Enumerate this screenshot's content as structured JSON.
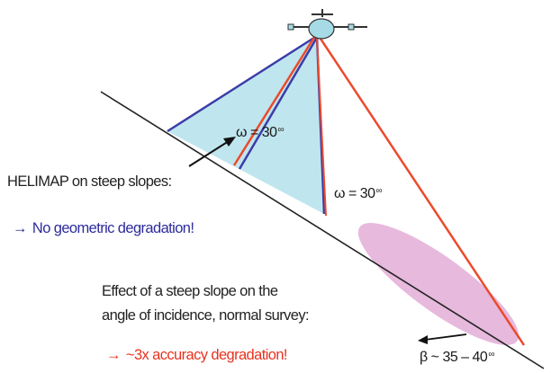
{
  "labels": {
    "omega_left": "ω = 30",
    "omega_left_unit": "∞",
    "omega_right": "ω = 30",
    "omega_right_unit": "∞",
    "helimap_caption": "HELIMAP on steep slopes:",
    "helimap_result_arrow": "→",
    "helimap_result": "No geometric degradation!",
    "normal_line1": "Effect of a steep slope on the",
    "normal_line2": "angle of incidence, normal survey:",
    "normal_result_arrow": "→",
    "normal_result": "~3x accuracy degradation!",
    "beta": "β ~ 35 – 40",
    "beta_unit": "∞"
  },
  "colors": {
    "helimap_fan_fill": "#bfe6ee",
    "normal_footprint_fill": "#e7b9dd",
    "blue_ray": "#3c3ca8",
    "red_ray": "#ec4a2c",
    "slope_line": "#222222",
    "helicopter": "#a6dbe6"
  },
  "icons": {
    "aircraft": "helicopter-icon"
  }
}
